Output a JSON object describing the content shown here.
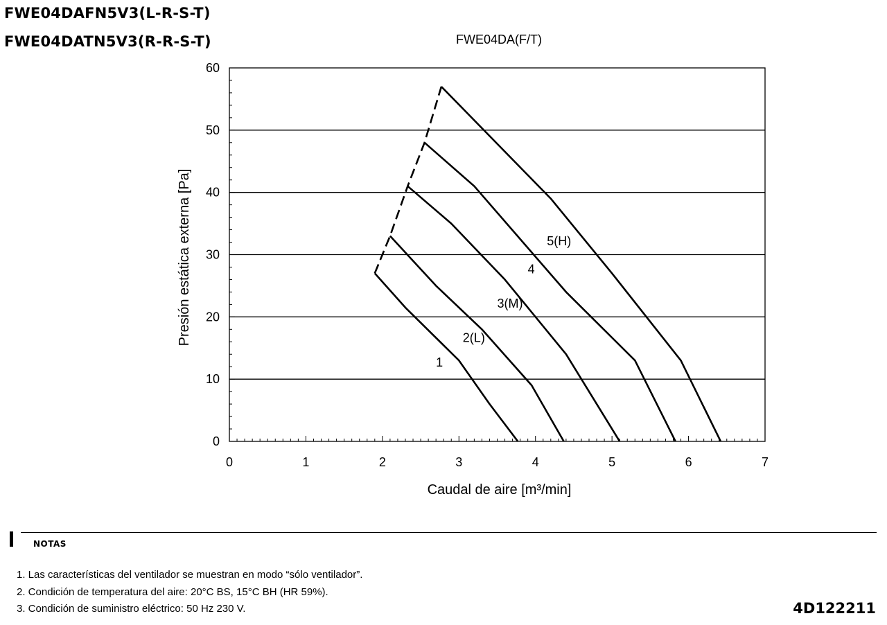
{
  "models": [
    "FWE04DAFN5V3(L-R-S-T)",
    "FWE04DATN5V3(R-R-S-T)"
  ],
  "chart_data": {
    "type": "line",
    "title": "FWE04DA(F/T)",
    "xlabel": "Caudal de aire [m³/min]",
    "ylabel": "Presión estática externa [Pa]",
    "xlim": [
      0,
      7
    ],
    "ylim": [
      0,
      60
    ],
    "xticks": [
      0,
      1,
      2,
      3,
      4,
      5,
      6,
      7
    ],
    "yticks": [
      0,
      10,
      20,
      30,
      40,
      50,
      60
    ],
    "grid": "horizontal",
    "series": [
      {
        "name": "1",
        "points": [
          [
            1.9,
            27
          ],
          [
            2.3,
            21.5
          ],
          [
            3.0,
            13
          ],
          [
            3.4,
            6
          ],
          [
            3.77,
            0
          ]
        ]
      },
      {
        "name": "2(L)",
        "points": [
          [
            2.1,
            33
          ],
          [
            2.7,
            25
          ],
          [
            3.3,
            18
          ],
          [
            3.95,
            9
          ],
          [
            4.37,
            0
          ]
        ]
      },
      {
        "name": "3(M)",
        "points": [
          [
            2.33,
            41
          ],
          [
            2.9,
            35
          ],
          [
            3.6,
            26
          ],
          [
            4.4,
            14
          ],
          [
            5.1,
            0
          ]
        ]
      },
      {
        "name": "4",
        "points": [
          [
            2.55,
            48
          ],
          [
            3.2,
            41
          ],
          [
            4.4,
            24
          ],
          [
            5.3,
            13
          ],
          [
            5.83,
            0
          ]
        ]
      },
      {
        "name": "5(H)",
        "points": [
          [
            2.77,
            57
          ],
          [
            4.2,
            39
          ],
          [
            5.0,
            27
          ],
          [
            5.9,
            13
          ],
          [
            6.42,
            0
          ]
        ]
      }
    ],
    "limit_line": {
      "style": "dashed",
      "points": [
        [
          1.9,
          27
        ],
        [
          2.1,
          33
        ],
        [
          2.33,
          41
        ],
        [
          2.55,
          48
        ],
        [
          2.77,
          57
        ]
      ]
    },
    "annotations": [
      {
        "text": "1",
        "x": 2.7,
        "y": 12
      },
      {
        "text": "2(L)",
        "x": 3.05,
        "y": 16
      },
      {
        "text": "3(M)",
        "x": 3.5,
        "y": 21.5
      },
      {
        "text": "4",
        "x": 3.9,
        "y": 27
      },
      {
        "text": "5(H)",
        "x": 4.15,
        "y": 31.5
      }
    ]
  },
  "notes": {
    "title": "NOTAS",
    "items": [
      "1. Las características del ventilador se muestran en modo “sólo ventilador”.",
      "2. Condición de temperatura del aire: 20°C BS, 15°C BH (HR 59%).",
      "3. Condición de suministro eléctrico: 50 Hz 230 V."
    ]
  },
  "reference_code": "4D122211"
}
